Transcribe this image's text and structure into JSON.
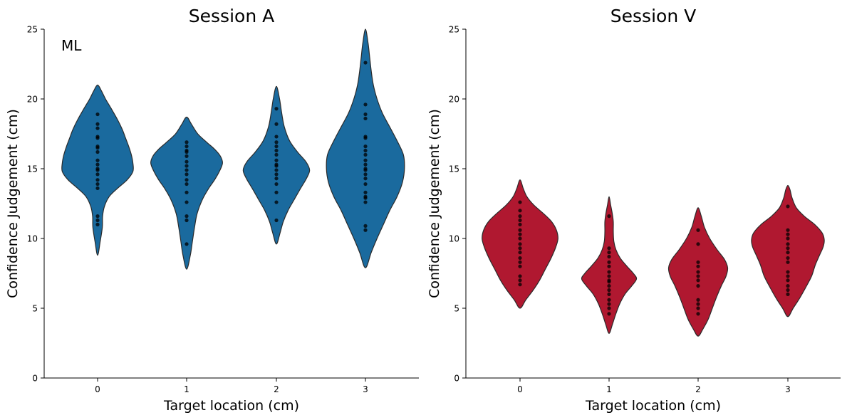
{
  "chart_data": [
    {
      "type": "violin",
      "title": "Session A",
      "xlabel": "Target location (cm)",
      "ylabel": "Confidence Judgement (cm)",
      "annotation": "ML",
      "categories": [
        "0",
        "1",
        "2",
        "3"
      ],
      "ylim": [
        0,
        25
      ],
      "yticks": [
        "0",
        "5",
        "10",
        "15",
        "20",
        "25"
      ],
      "color": "#1a6a9e",
      "grid": false,
      "violins": [
        {
          "profile": [
            [
              8.8,
              0
            ],
            [
              9.8,
              0.5
            ],
            [
              10.8,
              0.9
            ],
            [
              11.6,
              0.95
            ],
            [
              12.3,
              1.3
            ],
            [
              13.0,
              2.2
            ],
            [
              13.6,
              3.8
            ],
            [
              14.2,
              5.6
            ],
            [
              14.8,
              6.7
            ],
            [
              15.4,
              6.7
            ],
            [
              16.0,
              6.4
            ],
            [
              16.6,
              5.9
            ],
            [
              17.2,
              5.3
            ],
            [
              17.8,
              4.7
            ],
            [
              18.5,
              3.8
            ],
            [
              19.3,
              2.6
            ],
            [
              20.0,
              1.5
            ],
            [
              20.6,
              0.7
            ],
            [
              21.0,
              0
            ]
          ],
          "points": [
            11.0,
            11.3,
            11.6,
            13.6,
            13.9,
            14.2,
            14.6,
            14.9,
            15.0,
            15.3,
            15.6,
            16.2,
            16.5,
            16.6,
            17.2,
            17.3,
            17.9,
            18.2,
            18.9
          ]
        },
        {
          "profile": [
            [
              7.8,
              0
            ],
            [
              8.8,
              0.7
            ],
            [
              9.8,
              1.1
            ],
            [
              10.8,
              1.5
            ],
            [
              11.8,
              2.0
            ],
            [
              12.8,
              3.0
            ],
            [
              13.6,
              4.2
            ],
            [
              14.2,
              5.3
            ],
            [
              14.8,
              6.2
            ],
            [
              15.4,
              6.8
            ],
            [
              15.9,
              6.4
            ],
            [
              16.4,
              5.3
            ],
            [
              16.9,
              3.8
            ],
            [
              17.5,
              2.1
            ],
            [
              18.2,
              0.9
            ],
            [
              18.7,
              0
            ]
          ],
          "points": [
            9.6,
            11.3,
            11.6,
            12.6,
            13.3,
            13.9,
            14.2,
            14.6,
            14.9,
            15.2,
            15.5,
            15.9,
            16.2,
            16.3,
            16.6,
            16.9
          ]
        },
        {
          "profile": [
            [
              9.6,
              0
            ],
            [
              10.4,
              0.7
            ],
            [
              11.2,
              1.3
            ],
            [
              12.0,
              2.2
            ],
            [
              12.8,
              3.4
            ],
            [
              13.6,
              4.6
            ],
            [
              14.3,
              5.7
            ],
            [
              14.9,
              6.3
            ],
            [
              15.5,
              5.6
            ],
            [
              16.2,
              4.0
            ],
            [
              17.0,
              2.5
            ],
            [
              18.0,
              1.5
            ],
            [
              19.0,
              1.0
            ],
            [
              20.0,
              0.6
            ],
            [
              20.9,
              0
            ]
          ],
          "points": [
            11.3,
            12.6,
            13.3,
            13.9,
            14.3,
            14.6,
            14.9,
            15.2,
            15.3,
            15.6,
            16.0,
            16.3,
            16.6,
            16.9,
            17.3,
            18.2,
            19.3
          ]
        },
        {
          "profile": [
            [
              7.9,
              0
            ],
            [
              9.0,
              1.1
            ],
            [
              10.0,
              2.2
            ],
            [
              11.0,
              3.4
            ],
            [
              12.0,
              4.6
            ],
            [
              13.0,
              6.0
            ],
            [
              14.0,
              7.0
            ],
            [
              15.0,
              7.4
            ],
            [
              16.0,
              7.2
            ],
            [
              17.0,
              6.0
            ],
            [
              18.0,
              4.6
            ],
            [
              19.0,
              3.2
            ],
            [
              20.0,
              2.2
            ],
            [
              21.0,
              1.5
            ],
            [
              22.0,
              1.1
            ],
            [
              23.0,
              0.8
            ],
            [
              24.0,
              0.5
            ],
            [
              25.0,
              0
            ]
          ],
          "points": [
            10.6,
            10.9,
            12.6,
            12.9,
            13.0,
            13.3,
            13.9,
            14.3,
            14.6,
            14.9,
            15.0,
            15.3,
            15.6,
            16.0,
            16.3,
            16.6,
            17.2,
            17.3,
            18.6,
            18.9,
            19.6,
            22.6
          ]
        }
      ]
    },
    {
      "type": "violin",
      "title": "Session V",
      "xlabel": "Target location (cm)",
      "ylabel": "Confidence Judgement (cm)",
      "categories": [
        "0",
        "1",
        "2",
        "3"
      ],
      "ylim": [
        0,
        25
      ],
      "yticks": [
        "0",
        "5",
        "10",
        "15",
        "20",
        "25"
      ],
      "color": "#b01830",
      "grid": false,
      "violins": [
        {
          "profile": [
            [
              5.0,
              0
            ],
            [
              5.6,
              1.1
            ],
            [
              6.3,
              2.5
            ],
            [
              7.0,
              3.7
            ],
            [
              7.8,
              4.8
            ],
            [
              8.6,
              5.9
            ],
            [
              9.4,
              6.8
            ],
            [
              10.0,
              7.2
            ],
            [
              10.6,
              6.9
            ],
            [
              11.2,
              6.0
            ],
            [
              11.8,
              4.4
            ],
            [
              12.4,
              2.6
            ],
            [
              13.0,
              1.3
            ],
            [
              13.6,
              0.6
            ],
            [
              14.2,
              0
            ]
          ],
          "points": [
            6.7,
            7.0,
            7.3,
            8.0,
            8.3,
            8.6,
            9.0,
            9.3,
            9.6,
            10.0,
            10.3,
            10.6,
            11.0,
            11.3,
            11.6,
            12.0,
            12.6
          ]
        },
        {
          "profile": [
            [
              3.2,
              0
            ],
            [
              3.8,
              0.6
            ],
            [
              4.5,
              1.2
            ],
            [
              5.3,
              2.0
            ],
            [
              6.0,
              3.0
            ],
            [
              6.6,
              4.3
            ],
            [
              7.1,
              5.2
            ],
            [
              7.5,
              4.6
            ],
            [
              8.0,
              3.4
            ],
            [
              8.6,
              2.1
            ],
            [
              9.2,
              1.3
            ],
            [
              9.8,
              0.9
            ],
            [
              10.5,
              0.8
            ],
            [
              11.2,
              0.8
            ],
            [
              11.8,
              0.6
            ],
            [
              12.4,
              0.3
            ],
            [
              13.0,
              0
            ]
          ],
          "points": [
            4.6,
            5.0,
            5.3,
            5.6,
            6.0,
            6.3,
            6.6,
            6.9,
            7.0,
            7.3,
            7.6,
            8.0,
            8.3,
            8.7,
            9.0,
            9.3,
            11.6
          ]
        },
        {
          "profile": [
            [
              3.0,
              0
            ],
            [
              3.5,
              0.9
            ],
            [
              4.2,
              1.9
            ],
            [
              5.0,
              2.7
            ],
            [
              5.8,
              3.5
            ],
            [
              6.6,
              4.4
            ],
            [
              7.3,
              5.3
            ],
            [
              7.9,
              5.6
            ],
            [
              8.5,
              5.0
            ],
            [
              9.2,
              3.6
            ],
            [
              10.0,
              2.2
            ],
            [
              10.8,
              1.2
            ],
            [
              11.6,
              0.6
            ],
            [
              12.2,
              0
            ]
          ],
          "points": [
            4.6,
            5.0,
            5.3,
            5.6,
            6.6,
            7.0,
            7.3,
            7.6,
            8.0,
            8.3,
            9.6,
            10.6
          ]
        },
        {
          "profile": [
            [
              4.4,
              0
            ],
            [
              5.0,
              1.0
            ],
            [
              5.7,
              2.2
            ],
            [
              6.5,
              3.4
            ],
            [
              7.3,
              4.5
            ],
            [
              8.1,
              5.2
            ],
            [
              8.8,
              6.0
            ],
            [
              9.4,
              6.7
            ],
            [
              9.9,
              6.9
            ],
            [
              10.4,
              6.5
            ],
            [
              11.0,
              5.1
            ],
            [
              11.6,
              3.1
            ],
            [
              12.2,
              1.6
            ],
            [
              12.9,
              0.8
            ],
            [
              13.5,
              0.4
            ],
            [
              13.8,
              0
            ]
          ],
          "points": [
            6.0,
            6.3,
            6.6,
            7.0,
            7.3,
            7.6,
            8.3,
            8.6,
            9.0,
            9.3,
            9.6,
            10.0,
            10.3,
            10.6,
            12.3
          ]
        }
      ]
    }
  ]
}
